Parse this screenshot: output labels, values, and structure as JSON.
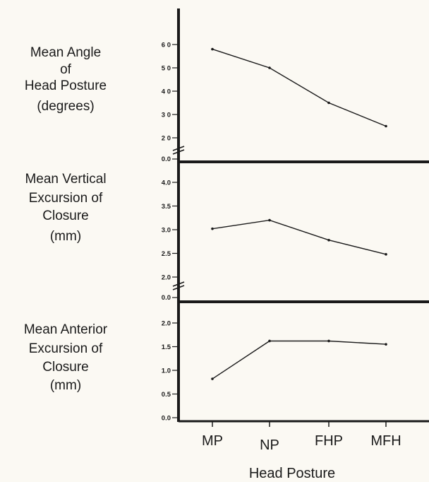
{
  "colors": {
    "ink": "#1a1a1a",
    "background": "#fbf9f3"
  },
  "chart_data": {
    "type": "line",
    "x_categories": [
      "MP",
      "NP",
      "FHP",
      "MFH"
    ],
    "xlabel": "Head Posture",
    "panels": [
      {
        "ylabel_lines": [
          "Mean Angle",
          "of",
          "Head Posture",
          "(degrees)"
        ],
        "yticks": [
          "2 0",
          "3 0",
          "4 0",
          "5 0",
          "6 0"
        ],
        "ytick_values": [
          20,
          30,
          40,
          50,
          60
        ],
        "axis_break_label": "0.0",
        "ylim": [
          20,
          60
        ],
        "values": [
          58,
          50,
          35,
          25
        ]
      },
      {
        "ylabel_lines": [
          "Mean Vertical",
          "Excursion of",
          "Closure",
          "(mm)"
        ],
        "yticks": [
          "2.0",
          "2.5",
          "3.0",
          "3.5",
          "4.0"
        ],
        "ytick_values": [
          2.0,
          2.5,
          3.0,
          3.5,
          4.0
        ],
        "axis_break_label": "0.0",
        "ylim": [
          2.0,
          4.0
        ],
        "values": [
          3.02,
          3.2,
          2.78,
          2.48
        ]
      },
      {
        "ylabel_lines": [
          "Mean Anterior",
          "Excursion of",
          "Closure",
          "(mm)"
        ],
        "yticks": [
          "0.0",
          "0.5",
          "1.0",
          "1.5",
          "2.0"
        ],
        "ytick_values": [
          0.0,
          0.5,
          1.0,
          1.5,
          2.0
        ],
        "ylim": [
          0.0,
          2.0
        ],
        "values": [
          0.82,
          1.62,
          1.62,
          1.55
        ]
      }
    ]
  }
}
